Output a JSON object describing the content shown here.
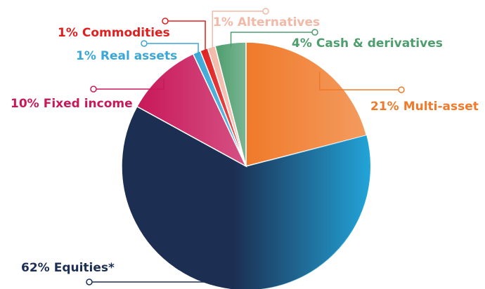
{
  "chart_data": {
    "type": "pie",
    "categories": [
      "Multi-asset",
      "Equities*",
      "Fixed income",
      "Real assets",
      "Commodities",
      "Alternatives",
      "Cash & derivatives"
    ],
    "values": [
      21,
      62,
      10,
      1,
      1,
      1,
      4
    ],
    "value_labels": [
      "21%",
      "62%",
      "10%",
      "1%",
      "1%",
      "1%",
      "4%"
    ],
    "colors": [
      "#f07a2a",
      "#1c2f52",
      "#c8185a",
      "#3aa7d6",
      "#e02020",
      "#f2b8a8",
      "#4e9d6e"
    ]
  }
}
